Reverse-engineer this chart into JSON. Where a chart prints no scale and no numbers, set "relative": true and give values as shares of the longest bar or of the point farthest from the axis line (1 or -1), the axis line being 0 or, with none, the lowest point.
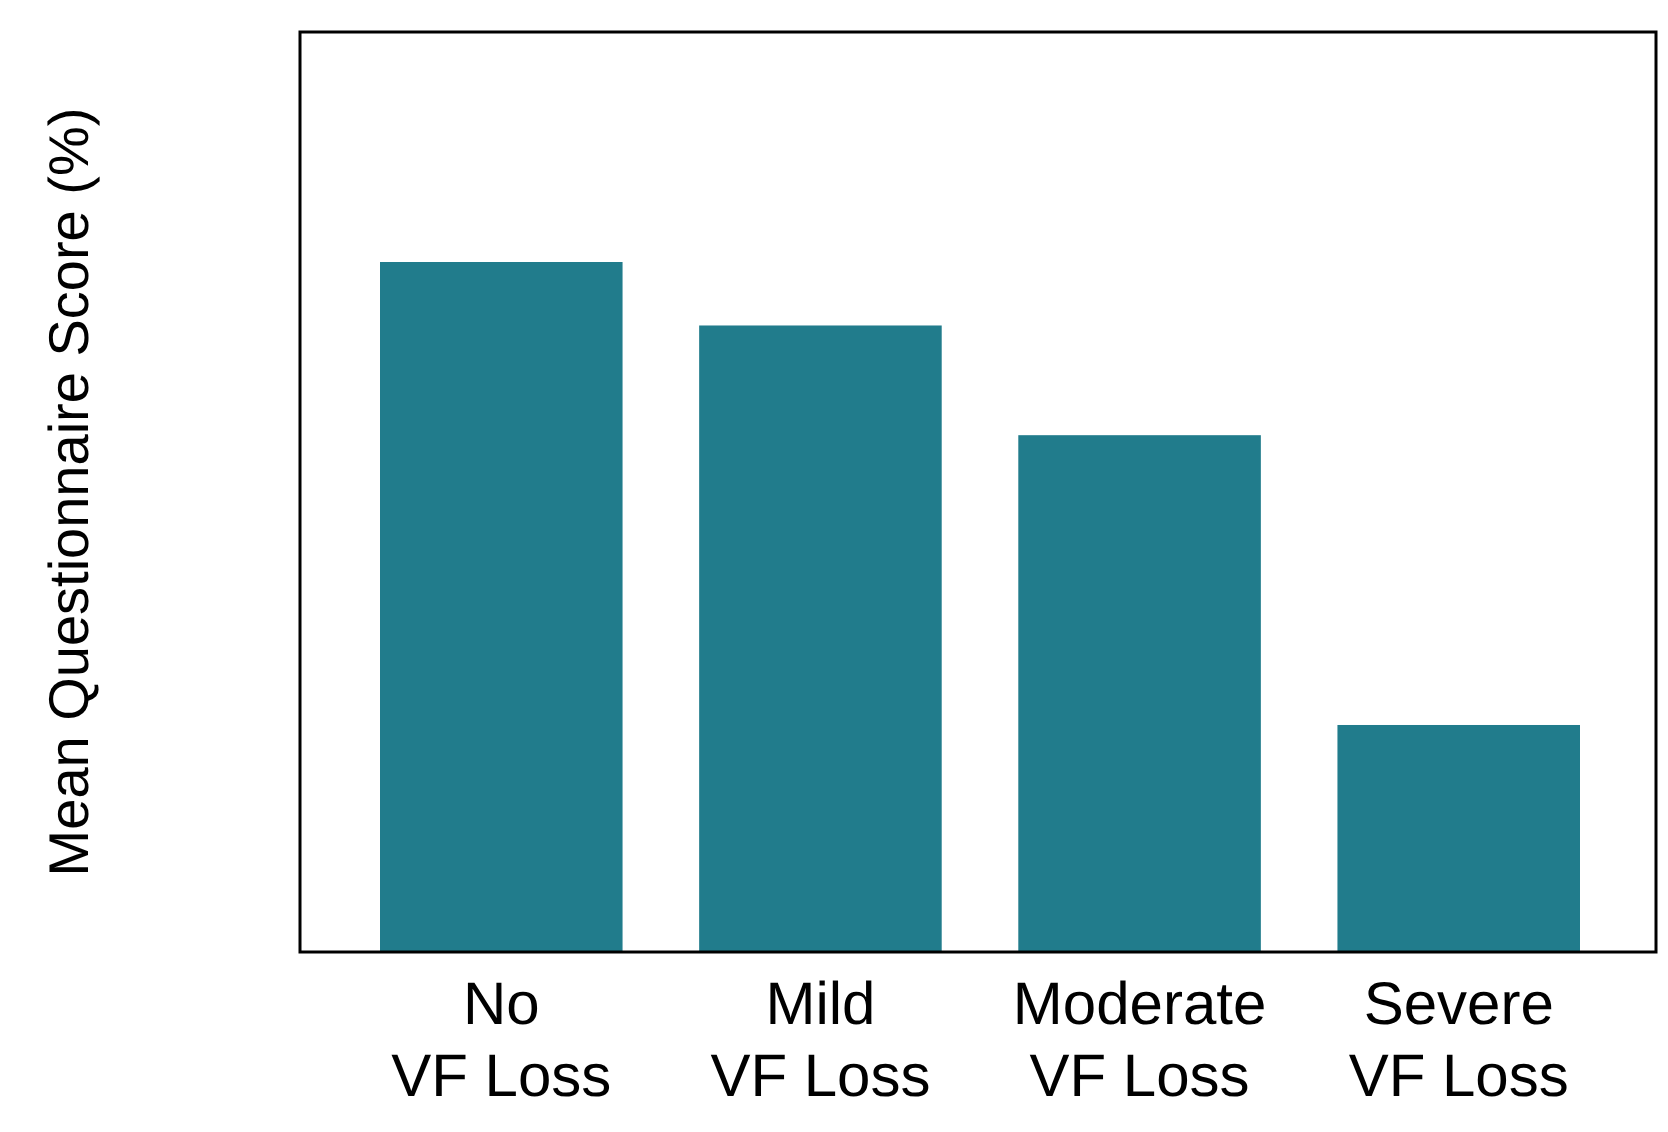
{
  "chart_data": {
    "type": "bar",
    "ylabel": "Mean Questionnaire Score (%)",
    "categories": [
      "No\nVF Loss",
      "Mild\nVF Loss",
      "Moderate\nVF Loss",
      "Severe\nVF Loss"
    ],
    "values": [
      1,
      0.908,
      0.749,
      0.329
    ],
    "color": "#217c8c",
    "relative": true
  }
}
